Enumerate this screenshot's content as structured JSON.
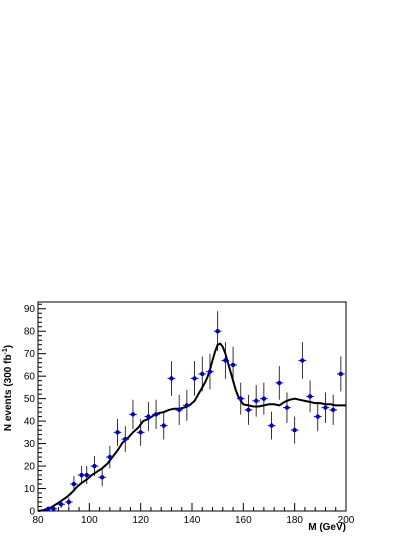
{
  "chart_data": {
    "type": "scatter",
    "title": "",
    "xlabel": "M (GeV)",
    "ylabel_main": "N events (300 fb",
    "ylabel_sup": "-1",
    "ylabel_close": ")",
    "xlim": [
      80,
      200
    ],
    "ylim": [
      0,
      93
    ],
    "x_ticks": [
      80,
      100,
      120,
      140,
      160,
      180,
      200
    ],
    "y_ticks": [
      0,
      10,
      20,
      30,
      40,
      50,
      60,
      70,
      80,
      90
    ],
    "grid": false,
    "legend": "none",
    "marker_color": "#0000cc",
    "error_color": "#000000",
    "curve_color": "#000000",
    "series": [
      {
        "kind": "data-points-with-errors",
        "x": [
          84,
          86,
          89,
          92,
          94,
          97,
          99,
          102,
          105,
          108,
          111,
          114,
          117,
          120,
          123,
          126,
          129,
          132,
          135,
          138,
          141,
          144,
          147,
          150,
          153,
          156,
          159,
          162,
          165,
          168,
          171,
          174,
          177,
          180,
          183,
          186,
          189,
          192,
          195,
          198
        ],
        "y": [
          1,
          1,
          3,
          4,
          12,
          16,
          16,
          20,
          15,
          24,
          35,
          32,
          43,
          35,
          42,
          43,
          38,
          59,
          45,
          47,
          59,
          61,
          62,
          80,
          67,
          65,
          50,
          45,
          49,
          50,
          38,
          57,
          46,
          36,
          67,
          51,
          42,
          46,
          45,
          61
        ],
        "err": [
          1,
          1,
          1.7,
          2,
          3.5,
          4,
          4,
          4.5,
          4,
          5,
          6,
          5.7,
          6.5,
          6,
          6.5,
          6.5,
          6.2,
          7.7,
          6.7,
          6.9,
          7.7,
          7.8,
          7.9,
          8.9,
          8.2,
          8.1,
          7.1,
          6.7,
          7,
          7.1,
          6.2,
          7.5,
          6.8,
          6,
          8.2,
          7.1,
          6.5,
          6.8,
          6.7,
          7.8
        ]
      },
      {
        "kind": "fit-curve",
        "x": [
          80,
          83,
          85,
          87,
          89,
          91,
          93,
          95,
          97,
          99,
          101,
          103,
          105,
          107,
          109,
          111,
          113,
          115,
          117,
          119,
          121,
          123,
          125,
          127,
          129,
          131,
          133,
          135,
          137,
          139,
          141,
          142,
          143,
          144,
          145,
          146,
          147,
          148,
          149,
          150,
          151,
          152,
          153,
          154,
          155,
          156,
          157,
          158,
          159,
          160,
          162,
          164,
          166,
          168,
          170,
          172,
          174,
          176,
          178,
          180,
          182,
          184,
          186,
          188,
          190,
          192,
          194,
          196,
          198,
          200
        ],
        "y": [
          0,
          0.5,
          1.5,
          3,
          4.5,
          6,
          8,
          10.5,
          12.5,
          14,
          16,
          17.5,
          19,
          21,
          24,
          27,
          30.5,
          32.5,
          35,
          37,
          40,
          41,
          42.5,
          43.5,
          44,
          45,
          45.5,
          45.5,
          46,
          47,
          49,
          51,
          53,
          55,
          57,
          59.5,
          63,
          67,
          71,
          74,
          74.5,
          73,
          70,
          66,
          62,
          58,
          54,
          51,
          49,
          47.5,
          47,
          46.5,
          46.5,
          47,
          47.5,
          47.5,
          47,
          48.5,
          49.5,
          50,
          49.5,
          49,
          48.5,
          48,
          48,
          47.5,
          47.5,
          47,
          47,
          47
        ]
      }
    ]
  }
}
